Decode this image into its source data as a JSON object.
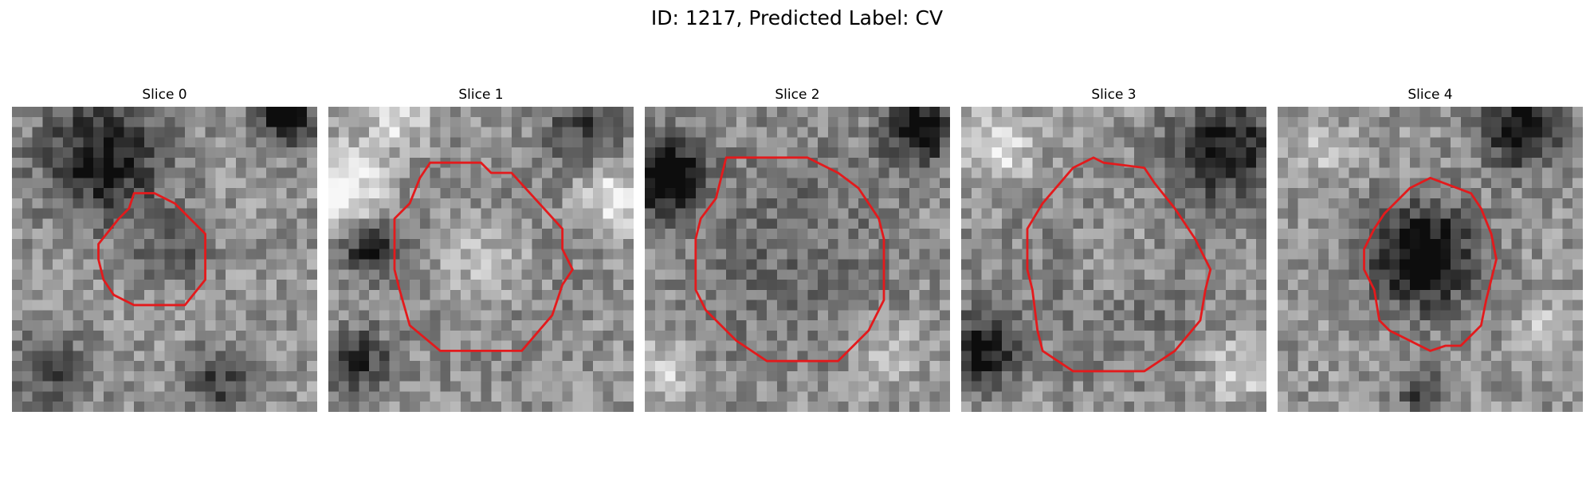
{
  "figure": {
    "title": "ID: 1217, Predicted Label: CV",
    "contour_color": "#e31a1c"
  },
  "slices": [
    {
      "label": "Slice 0",
      "seed": 11,
      "blobs": [
        [
          9,
          5,
          6,
          -0.5
        ],
        [
          16,
          14,
          3.5,
          -0.25
        ],
        [
          27,
          1,
          2.5,
          -0.7
        ],
        [
          4,
          26,
          4,
          -0.3
        ],
        [
          20,
          27,
          3,
          -0.35
        ]
      ],
      "contour": [
        [
          12,
          8.5
        ],
        [
          14,
          8.5
        ],
        [
          16,
          9.5
        ],
        [
          17,
          10.5
        ],
        [
          19,
          12.5
        ],
        [
          19,
          17
        ],
        [
          17,
          19.5
        ],
        [
          12,
          19.5
        ],
        [
          10,
          18.5
        ],
        [
          9,
          17
        ],
        [
          8.5,
          15
        ],
        [
          8.5,
          13.5
        ],
        [
          10.5,
          11
        ],
        [
          11.5,
          10
        ]
      ]
    },
    {
      "label": "Slice 1",
      "seed": 23,
      "blobs": [
        [
          15,
          15,
          6,
          0.55
        ],
        [
          15,
          15,
          7.5,
          -0.4
        ],
        [
          1,
          8,
          4,
          0.5
        ],
        [
          4,
          14,
          2.5,
          -0.5
        ],
        [
          25,
          2,
          3.5,
          -0.35
        ],
        [
          7,
          1,
          3,
          0.3
        ],
        [
          3,
          25,
          3,
          -0.4
        ],
        [
          28,
          9,
          3,
          0.4
        ]
      ],
      "contour": [
        [
          10,
          5.5
        ],
        [
          15,
          5.5
        ],
        [
          16,
          6.5
        ],
        [
          18,
          6.5
        ],
        [
          23,
          12
        ],
        [
          23,
          14
        ],
        [
          24,
          16
        ],
        [
          23,
          17.5
        ],
        [
          22,
          20.5
        ],
        [
          19,
          24
        ],
        [
          11,
          24
        ],
        [
          8,
          21.5
        ],
        [
          7,
          18
        ],
        [
          6.5,
          16
        ],
        [
          6.5,
          11
        ],
        [
          8,
          9.5
        ],
        [
          9,
          7
        ]
      ]
    },
    {
      "label": "Slice 2",
      "seed": 37,
      "blobs": [
        [
          14,
          14,
          8,
          0.2
        ],
        [
          14,
          14,
          9.5,
          -0.35
        ],
        [
          2,
          7,
          3.5,
          -0.7
        ],
        [
          27,
          2,
          3.5,
          -0.6
        ],
        [
          24,
          24,
          3,
          0.2
        ],
        [
          2,
          26,
          3,
          0.25
        ]
      ],
      "contour": [
        [
          8,
          5
        ],
        [
          16,
          5
        ],
        [
          17,
          5.5
        ],
        [
          19,
          6.5
        ],
        [
          21,
          8
        ],
        [
          23,
          11
        ],
        [
          23.5,
          13
        ],
        [
          23.5,
          19
        ],
        [
          22,
          22
        ],
        [
          19,
          25
        ],
        [
          12,
          25
        ],
        [
          9,
          23
        ],
        [
          6,
          20
        ],
        [
          5,
          18
        ],
        [
          5,
          13
        ],
        [
          5.5,
          11
        ],
        [
          7,
          9
        ]
      ]
    },
    {
      "label": "Slice 3",
      "seed": 41,
      "blobs": [
        [
          15,
          15,
          6.5,
          0.35
        ],
        [
          15,
          16,
          8.5,
          -0.35
        ],
        [
          26,
          4,
          5,
          -0.5
        ],
        [
          2,
          24,
          3.5,
          -0.55
        ],
        [
          4,
          4,
          3.5,
          0.3
        ],
        [
          27,
          26,
          3,
          0.25
        ]
      ],
      "contour": [
        [
          11,
          6
        ],
        [
          13,
          5
        ],
        [
          14,
          5.5
        ],
        [
          18,
          6
        ],
        [
          19,
          7.5
        ],
        [
          21,
          10
        ],
        [
          23,
          13
        ],
        [
          24.5,
          16
        ],
        [
          24,
          18
        ],
        [
          23.5,
          21
        ],
        [
          21,
          24
        ],
        [
          18,
          26
        ],
        [
          11,
          26
        ],
        [
          8,
          24
        ],
        [
          7.5,
          22
        ],
        [
          7,
          18
        ],
        [
          6.5,
          16
        ],
        [
          6.5,
          12
        ],
        [
          8,
          9.5
        ]
      ]
    },
    {
      "label": "Slice 4",
      "seed": 53,
      "blobs": [
        [
          14.5,
          15,
          5.5,
          -0.45
        ],
        [
          14,
          14,
          4,
          -0.2
        ],
        [
          24,
          2,
          4,
          -0.55
        ],
        [
          14,
          28,
          2,
          -0.4
        ],
        [
          4,
          4,
          3,
          0.2
        ],
        [
          27,
          22,
          3,
          0.2
        ]
      ],
      "contour": [
        [
          13,
          8
        ],
        [
          15,
          7
        ],
        [
          19,
          8.5
        ],
        [
          20,
          10
        ],
        [
          21,
          12.5
        ],
        [
          21.5,
          15
        ],
        [
          21,
          17
        ],
        [
          20.5,
          19
        ],
        [
          20,
          21.5
        ],
        [
          18,
          23.5
        ],
        [
          16.5,
          23.5
        ],
        [
          15,
          24
        ],
        [
          13,
          23
        ],
        [
          11,
          22
        ],
        [
          10,
          21
        ],
        [
          9.5,
          18
        ],
        [
          8.5,
          16
        ],
        [
          8.5,
          14
        ],
        [
          9.5,
          12
        ],
        [
          10.5,
          10.5
        ],
        [
          12,
          9
        ]
      ]
    }
  ]
}
